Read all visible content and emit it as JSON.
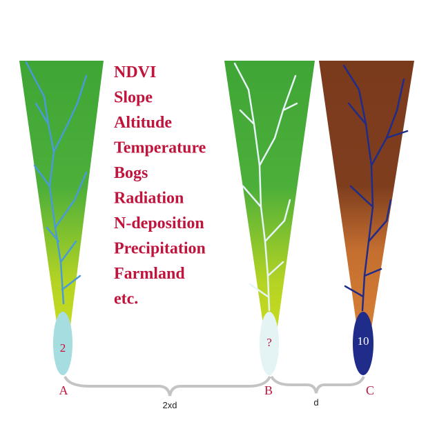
{
  "factors": [
    "NDVI",
    "Slope",
    "Altitude",
    "Temperature",
    "Bogs",
    "Radiation",
    "N-deposition",
    "Precipitation",
    "Farmland",
    "etc."
  ],
  "catchments": [
    {
      "label": "A",
      "value": 2
    },
    {
      "label": "B",
      "value": "?"
    },
    {
      "label": "C",
      "value": 10
    }
  ],
  "distances": [
    "2xd",
    "d"
  ]
}
